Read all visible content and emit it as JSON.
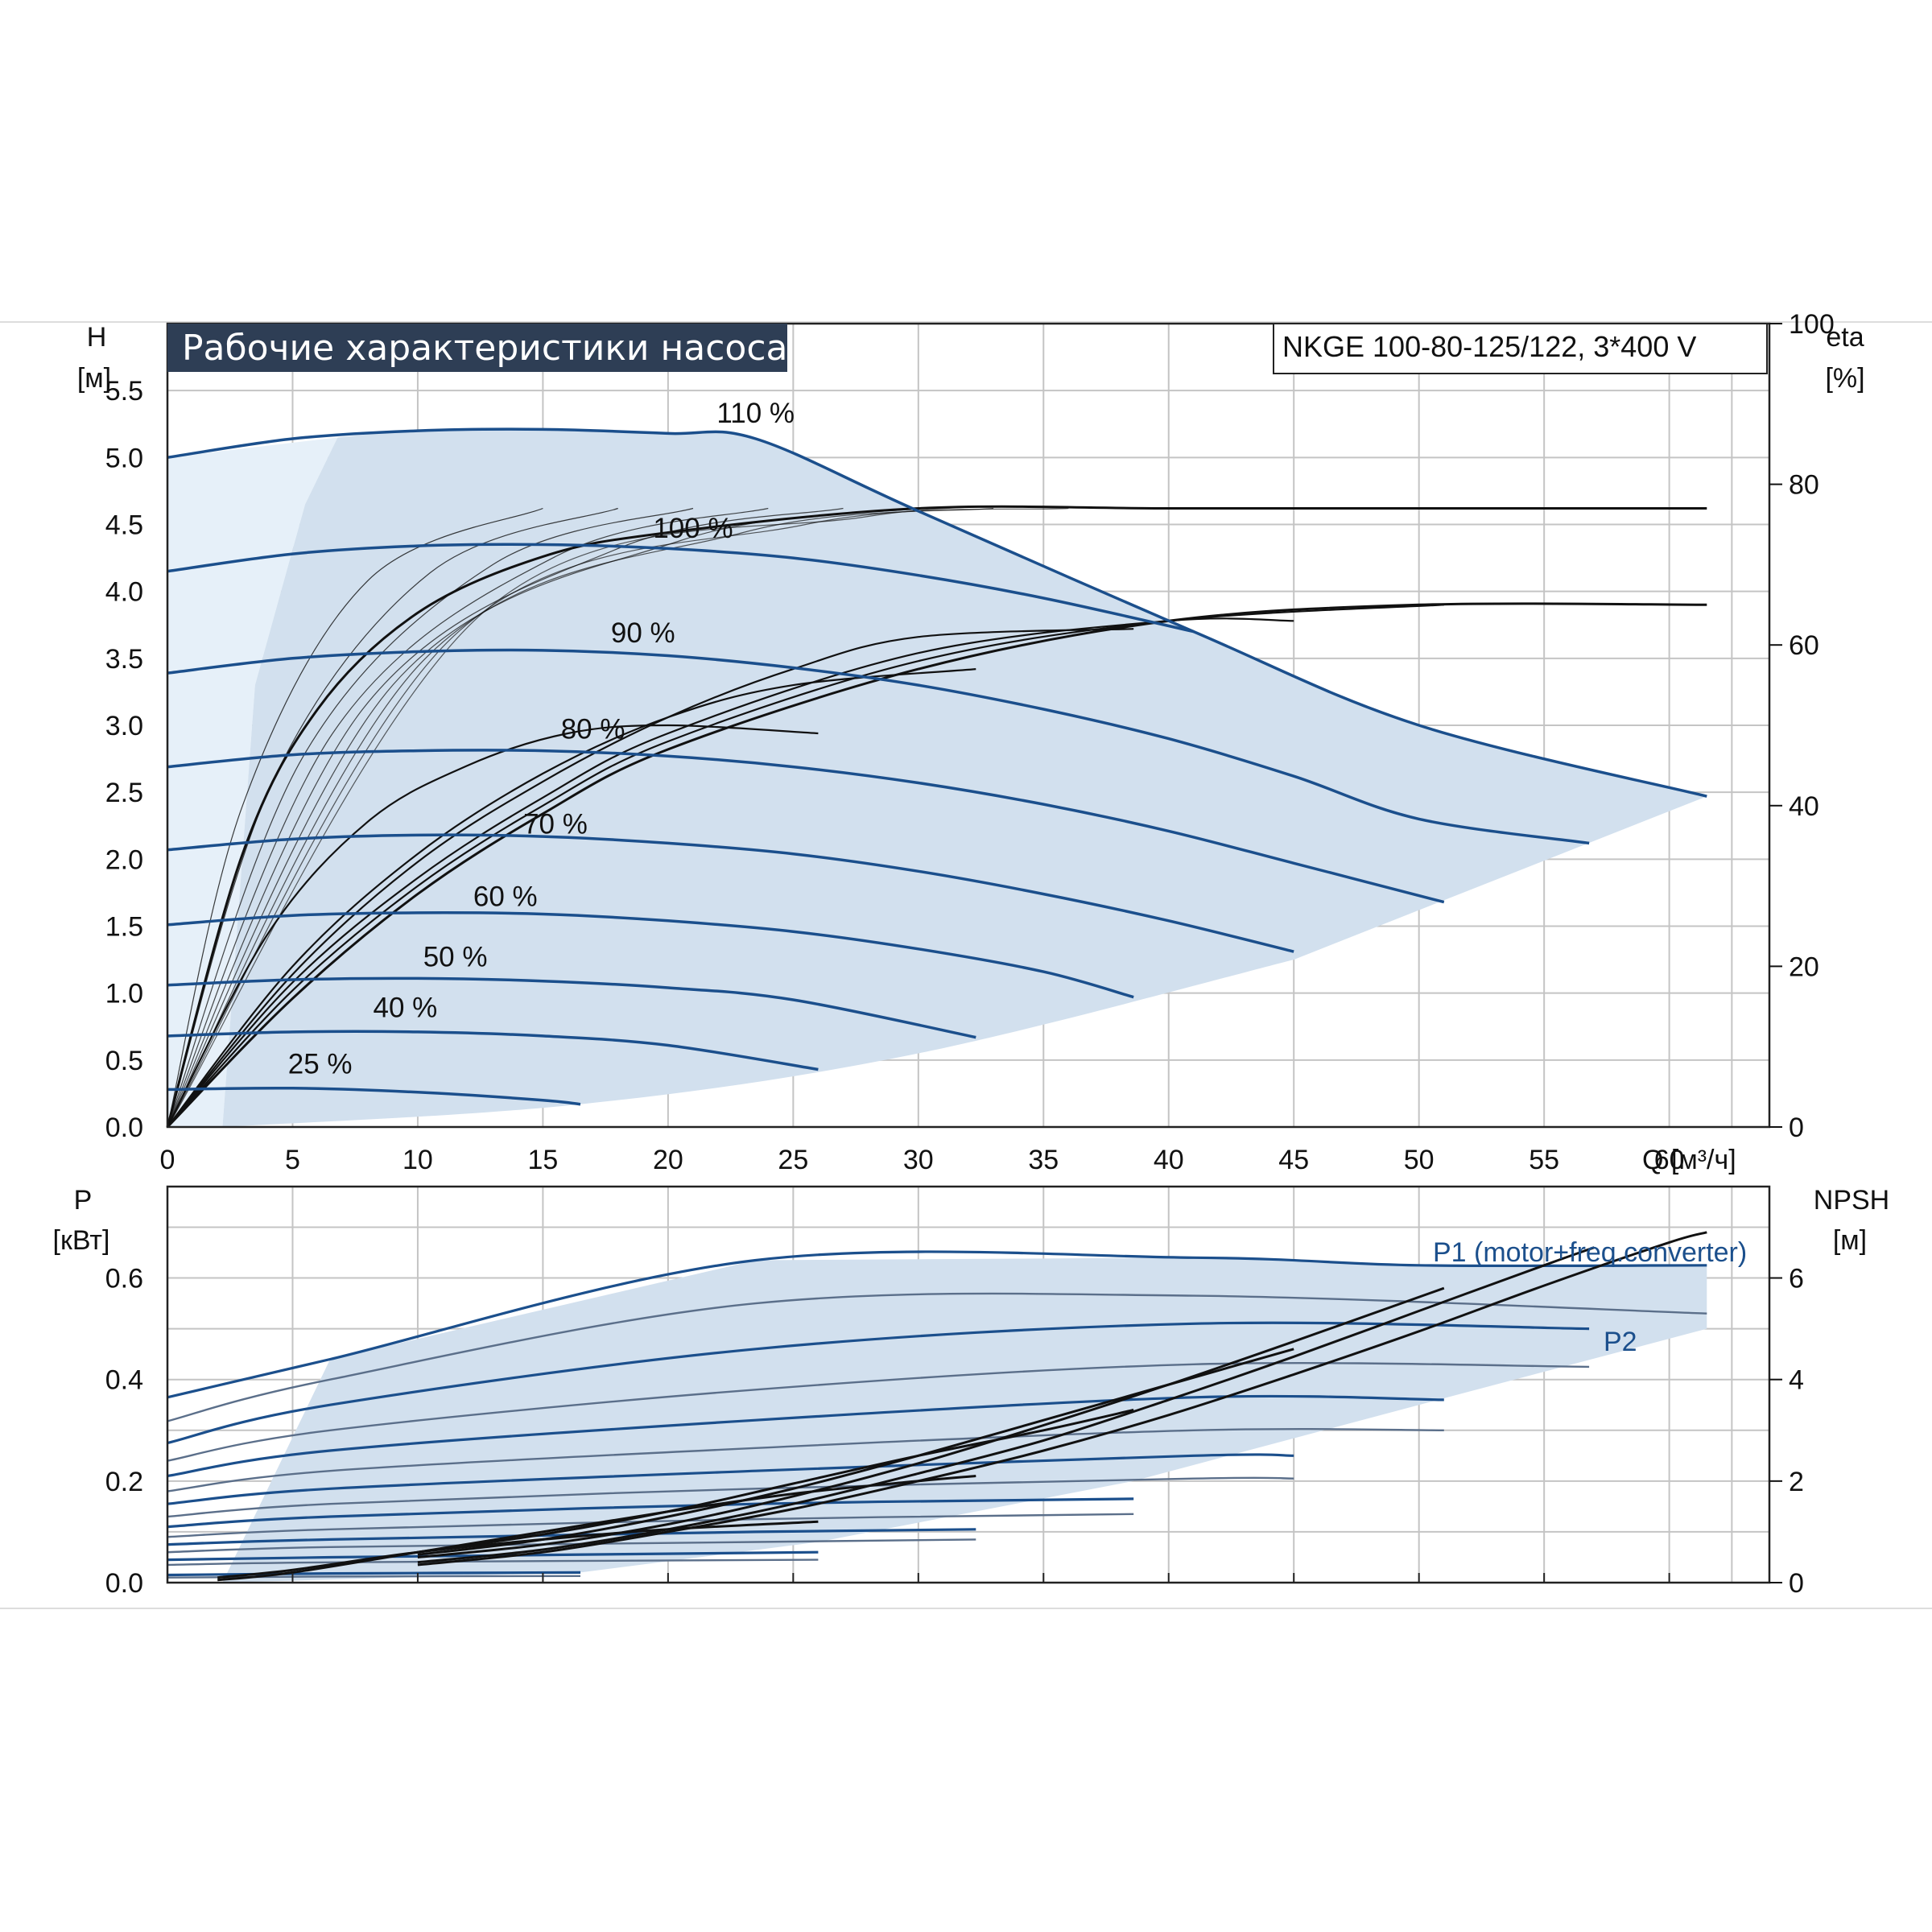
{
  "title": "Рабочие характеристики насоса",
  "model": "NKGE 100-80-125/122, 3*400 V",
  "colors": {
    "curve": "#1b4f8c",
    "envelope": "#d2e0ee",
    "envelope_light": "#e6f0f9",
    "title_bg": "#2e3e55",
    "grid": "#c4c4c4",
    "efficiency": "#111111"
  },
  "chart_data": [
    {
      "type": "line",
      "name_key": "head",
      "ylabel": "H",
      "yunit": "[м]",
      "y2label": "eta",
      "y2unit": "[%]",
      "xlabel": "Q [м³/ч]",
      "xlim": [
        0,
        64
      ],
      "ylim": [
        0,
        6
      ],
      "y2lim": [
        0,
        100
      ],
      "xticks": [
        0,
        5,
        10,
        15,
        20,
        25,
        30,
        35,
        40,
        45,
        50,
        55,
        60
      ],
      "yticks": [
        "0.0",
        "0.5",
        "1.0",
        "1.5",
        "2.0",
        "2.5",
        "3.0",
        "3.5",
        "4.0",
        "4.5",
        "5.0",
        "5.5"
      ],
      "y2ticks": [
        0,
        20,
        40,
        60,
        80,
        100
      ],
      "grid": true,
      "head_curves": [
        {
          "label": "110 %",
          "x": [
            0,
            5,
            10,
            15,
            20,
            23.5,
            30,
            41,
            50,
            61.5
          ],
          "y": [
            5.0,
            5.14,
            5.2,
            5.21,
            5.18,
            5.14,
            4.6,
            3.7,
            3.0,
            2.47
          ],
          "label_at": [
            23.5,
            5.26
          ]
        },
        {
          "label": "100 %",
          "x": [
            0,
            5,
            10,
            15,
            20,
            25,
            30,
            35,
            41
          ],
          "y": [
            4.15,
            4.28,
            4.34,
            4.35,
            4.32,
            4.25,
            4.12,
            3.95,
            3.7
          ],
          "label_at": [
            21,
            4.4
          ]
        },
        {
          "label": "90 %",
          "x": [
            0,
            5,
            10,
            15,
            20,
            25,
            30,
            35,
            40,
            45,
            50,
            56.8
          ],
          "y": [
            3.39,
            3.5,
            3.55,
            3.56,
            3.52,
            3.43,
            3.3,
            3.12,
            2.9,
            2.62,
            2.3,
            2.12
          ],
          "label_at": [
            19,
            3.62
          ]
        },
        {
          "label": "80 %",
          "x": [
            0,
            5,
            10,
            15,
            20,
            25,
            30,
            35,
            40,
            45,
            51
          ],
          "y": [
            2.69,
            2.78,
            2.81,
            2.81,
            2.77,
            2.69,
            2.57,
            2.41,
            2.21,
            1.97,
            1.68
          ],
          "label_at": [
            17,
            2.9
          ]
        },
        {
          "label": "70 %",
          "x": [
            0,
            5,
            10,
            15,
            20,
            25,
            30,
            35,
            40,
            45
          ],
          "y": [
            2.07,
            2.15,
            2.18,
            2.17,
            2.12,
            2.04,
            1.91,
            1.74,
            1.54,
            1.31
          ],
          "label_at": [
            15.5,
            2.19
          ]
        },
        {
          "label": "60 %",
          "x": [
            0,
            5,
            10,
            15,
            20,
            25,
            30,
            35,
            38.6
          ],
          "y": [
            1.51,
            1.58,
            1.6,
            1.59,
            1.54,
            1.46,
            1.33,
            1.16,
            0.97
          ],
          "label_at": [
            13.5,
            1.65
          ]
        },
        {
          "label": "50 %",
          "x": [
            0,
            5,
            10,
            15,
            20,
            25,
            32.3
          ],
          "y": [
            1.06,
            1.1,
            1.11,
            1.09,
            1.04,
            0.95,
            0.67
          ],
          "label_at": [
            11.5,
            1.2
          ]
        },
        {
          "label": "40 %",
          "x": [
            0,
            5,
            10,
            15,
            20,
            26
          ],
          "y": [
            0.68,
            0.71,
            0.71,
            0.68,
            0.61,
            0.43
          ],
          "label_at": [
            9.5,
            0.82
          ]
        },
        {
          "label": "25 %",
          "x": [
            0,
            5,
            10,
            15,
            16.5
          ],
          "y": [
            0.28,
            0.29,
            0.26,
            0.2,
            0.17
          ],
          "label_at": [
            6.1,
            0.4
          ]
        }
      ],
      "efficiency_curves": [
        {
          "x": [
            0,
            3,
            6,
            10,
            15,
            20,
            30,
            40,
            50,
            61.5
          ],
          "y": [
            0,
            34,
            52,
            64,
            71,
            74,
            77,
            77,
            77,
            77
          ]
        },
        {
          "x": [
            0,
            4,
            8,
            12,
            16,
            20,
            26
          ],
          "y": [
            0,
            24,
            38,
            45,
            49,
            50,
            49
          ]
        },
        {
          "x": [
            0,
            5,
            10,
            15,
            20,
            25,
            32.3
          ],
          "y": [
            0,
            20,
            34,
            44,
            51,
            55,
            57
          ]
        },
        {
          "x": [
            0,
            5,
            10,
            15,
            20,
            25,
            30,
            38.6
          ],
          "y": [
            0,
            19,
            33,
            43,
            51,
            57,
            61,
            62
          ]
        },
        {
          "x": [
            0,
            5,
            10,
            15,
            20,
            30,
            40,
            45
          ],
          "y": [
            0,
            18,
            31,
            41,
            49,
            59,
            63,
            63
          ]
        },
        {
          "x": [
            0,
            5,
            10,
            15,
            20,
            30,
            40,
            51
          ],
          "y": [
            0,
            17,
            30,
            40,
            48,
            58,
            63,
            65
          ]
        },
        {
          "x": [
            0,
            5,
            10,
            15,
            20,
            30,
            40,
            50,
            61.5
          ],
          "y": [
            0,
            16,
            29,
            39,
            47,
            57,
            63,
            65,
            65
          ]
        }
      ]
    },
    {
      "type": "line",
      "name_key": "power",
      "ylabel": "P",
      "yunit": "[кВт]",
      "y2label": "NPSH",
      "y2unit": "[м]",
      "xlim": [
        0,
        64
      ],
      "ylim": [
        0,
        0.78
      ],
      "y2lim": [
        0,
        7.8
      ],
      "yticks": [
        "0.0",
        "0.2",
        "0.4",
        "0.6"
      ],
      "y2ticks": [
        0,
        2,
        4,
        6
      ],
      "grid": true,
      "series_labels": [
        "P1 (motor+freq.converter)",
        "P2"
      ],
      "power_curves": [
        {
          "x": [
            0,
            6.5,
            23.5,
            41,
            50,
            61.5
          ],
          "y": [
            0.365,
            0.44,
            0.635,
            0.64,
            0.625,
            0.625
          ]
        },
        {
          "x": [
            0,
            6.5,
            23.5,
            41,
            61.5
          ],
          "y": [
            0.318,
            0.4,
            0.55,
            0.565,
            0.53
          ]
        },
        {
          "x": [
            0,
            6.5,
            23.5,
            41,
            56.8
          ],
          "y": [
            0.275,
            0.35,
            0.46,
            0.51,
            0.5
          ]
        },
        {
          "x": [
            0,
            6.5,
            23.5,
            41,
            56.8
          ],
          "y": [
            0.24,
            0.3,
            0.38,
            0.43,
            0.425
          ]
        },
        {
          "x": [
            0,
            6.5,
            23.5,
            41,
            51
          ],
          "y": [
            0.21,
            0.26,
            0.32,
            0.365,
            0.36
          ]
        },
        {
          "x": [
            0,
            6.5,
            23.5,
            41,
            51
          ],
          "y": [
            0.18,
            0.22,
            0.265,
            0.3,
            0.3
          ]
        },
        {
          "x": [
            0,
            6.5,
            23.5,
            41,
            45
          ],
          "y": [
            0.155,
            0.185,
            0.22,
            0.25,
            0.25
          ]
        },
        {
          "x": [
            0,
            6.5,
            23.5,
            41,
            45
          ],
          "y": [
            0.13,
            0.155,
            0.185,
            0.205,
            0.205
          ]
        },
        {
          "x": [
            0,
            6.5,
            23.5,
            38.6
          ],
          "y": [
            0.11,
            0.13,
            0.155,
            0.165
          ]
        },
        {
          "x": [
            0,
            6.5,
            23.5,
            38.6
          ],
          "y": [
            0.09,
            0.105,
            0.125,
            0.135
          ]
        },
        {
          "x": [
            0,
            6.5,
            23.5,
            32.3
          ],
          "y": [
            0.075,
            0.085,
            0.1,
            0.105
          ]
        },
        {
          "x": [
            0,
            6.5,
            23.5,
            32.3
          ],
          "y": [
            0.06,
            0.07,
            0.08,
            0.085
          ]
        },
        {
          "x": [
            0,
            6.5,
            26
          ],
          "y": [
            0.045,
            0.05,
            0.06
          ]
        },
        {
          "x": [
            0,
            6.5,
            26
          ],
          "y": [
            0.035,
            0.04,
            0.045
          ]
        },
        {
          "x": [
            0,
            6.5,
            16.5
          ],
          "y": [
            0.015,
            0.018,
            0.02
          ]
        },
        {
          "x": [
            0,
            6.5,
            16.5
          ],
          "y": [
            0.01,
            0.012,
            0.013
          ]
        }
      ],
      "npsh_curves": [
        {
          "x": [
            10,
            15,
            20,
            25,
            30,
            35,
            40,
            45,
            50,
            55,
            60,
            61.5
          ],
          "y": [
            0.35,
            0.6,
            1.0,
            1.45,
            2.0,
            2.6,
            3.3,
            4.1,
            4.95,
            5.85,
            6.7,
            6.9
          ]
        },
        {
          "x": [
            10,
            15,
            20,
            25,
            30,
            35,
            40,
            45,
            50,
            55,
            57
          ],
          "y": [
            0.4,
            0.65,
            1.05,
            1.55,
            2.15,
            2.8,
            3.6,
            4.45,
            5.35,
            6.25,
            6.6
          ]
        },
        {
          "x": [
            10,
            15,
            20,
            25,
            30,
            35,
            40,
            45,
            51
          ],
          "y": [
            0.5,
            0.75,
            1.15,
            1.7,
            2.35,
            3.1,
            3.9,
            4.75,
            5.8
          ]
        },
        {
          "x": [
            10,
            15,
            20,
            25,
            30,
            35,
            40,
            45
          ],
          "y": [
            0.55,
            0.85,
            1.3,
            1.85,
            2.5,
            3.2,
            3.9,
            4.6
          ]
        },
        {
          "x": [
            10,
            15,
            20,
            25,
            30,
            35,
            38.6
          ],
          "y": [
            0.6,
            0.95,
            1.4,
            1.95,
            2.5,
            3.0,
            3.4
          ]
        },
        {
          "x": [
            2,
            5,
            10,
            15,
            20,
            25,
            30,
            32.3
          ],
          "y": [
            0.05,
            0.2,
            0.6,
            1.0,
            1.4,
            1.75,
            2.0,
            2.1
          ]
        },
        {
          "x": [
            2,
            5,
            10,
            15,
            20,
            26
          ],
          "y": [
            0.1,
            0.25,
            0.6,
            0.85,
            1.05,
            1.2
          ]
        }
      ]
    }
  ]
}
